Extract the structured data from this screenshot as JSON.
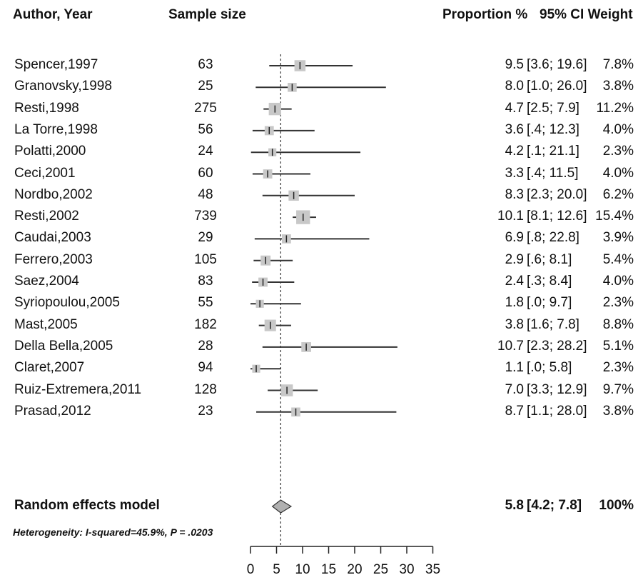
{
  "headers": {
    "author": "Author, Year",
    "sample": "Sample size",
    "proportion": "Proportion %",
    "ci": "95% CI",
    "weight": "Weight"
  },
  "chart_data": {
    "type": "forest",
    "studies": [
      {
        "author": "Spencer,1997",
        "n": "63",
        "est": 9.5,
        "lo": 3.6,
        "hi": 19.6,
        "prop": "9.5",
        "ci": "[3.6; 19.6]",
        "weight": "7.8%",
        "w": 7.8
      },
      {
        "author": "Granovsky,1998",
        "n": "25",
        "est": 8.0,
        "lo": 1.0,
        "hi": 26.0,
        "prop": "8.0",
        "ci": "[1.0; 26.0]",
        "weight": "3.8%",
        "w": 3.8
      },
      {
        "author": "Resti,1998",
        "n": "275",
        "est": 4.7,
        "lo": 2.5,
        "hi": 7.9,
        "prop": "4.7",
        "ci": "[2.5; 7.9]",
        "weight": "11.2%",
        "w": 11.2
      },
      {
        "author": "La Torre,1998",
        "n": "56",
        "est": 3.6,
        "lo": 0.4,
        "hi": 12.3,
        "prop": "3.6",
        "ci": "[.4; 12.3]",
        "weight": "4.0%",
        "w": 4.0
      },
      {
        "author": "Polatti,2000",
        "n": "24",
        "est": 4.2,
        "lo": 0.1,
        "hi": 21.1,
        "prop": "4.2",
        "ci": "[.1; 21.1]",
        "weight": "2.3%",
        "w": 2.3
      },
      {
        "author": "Ceci,2001",
        "n": "60",
        "est": 3.3,
        "lo": 0.4,
        "hi": 11.5,
        "prop": "3.3",
        "ci": "[.4; 11.5]",
        "weight": "4.0%",
        "w": 4.0
      },
      {
        "author": "Nordbo,2002",
        "n": "48",
        "est": 8.3,
        "lo": 2.3,
        "hi": 20.0,
        "prop": "8.3",
        "ci": "[2.3; 20.0]",
        "weight": "6.2%",
        "w": 6.2
      },
      {
        "author": "Resti,2002",
        "n": "739",
        "est": 10.1,
        "lo": 8.1,
        "hi": 12.6,
        "prop": "10.1",
        "ci": "[8.1; 12.6]",
        "weight": "15.4%",
        "w": 15.4
      },
      {
        "author": "Caudai,2003",
        "n": "29",
        "est": 6.9,
        "lo": 0.8,
        "hi": 22.8,
        "prop": "6.9",
        "ci": "[.8; 22.8]",
        "weight": "3.9%",
        "w": 3.9
      },
      {
        "author": "Ferrero,2003",
        "n": "105",
        "est": 2.9,
        "lo": 0.6,
        "hi": 8.1,
        "prop": "2.9",
        "ci": "[.6; 8.1]",
        "weight": "5.4%",
        "w": 5.4
      },
      {
        "author": "Saez,2004",
        "n": "83",
        "est": 2.4,
        "lo": 0.3,
        "hi": 8.4,
        "prop": "2.4",
        "ci": "[.3; 8.4]",
        "weight": "4.0%",
        "w": 4.0
      },
      {
        "author": "Syriopoulou,2005",
        "n": "55",
        "est": 1.8,
        "lo": 0.0,
        "hi": 9.7,
        "prop": "1.8",
        "ci": "[.0; 9.7]",
        "weight": "2.3%",
        "w": 2.3
      },
      {
        "author": "Mast,2005",
        "n": "182",
        "est": 3.8,
        "lo": 1.6,
        "hi": 7.8,
        "prop": "3.8",
        "ci": "[1.6; 7.8]",
        "weight": "8.8%",
        "w": 8.8
      },
      {
        "author": "Della Bella,2005",
        "n": "28",
        "est": 10.7,
        "lo": 2.3,
        "hi": 28.2,
        "prop": "10.7",
        "ci": "[2.3; 28.2]",
        "weight": "5.1%",
        "w": 5.1
      },
      {
        "author": "Claret,2007",
        "n": "94",
        "est": 1.1,
        "lo": 0.0,
        "hi": 5.8,
        "prop": "1.1",
        "ci": "[.0; 5.8]",
        "weight": "2.3%",
        "w": 2.3
      },
      {
        "author": "Ruiz-Extremera,2011",
        "n": "128",
        "est": 7.0,
        "lo": 3.3,
        "hi": 12.9,
        "prop": "7.0",
        "ci": "[3.3; 12.9]",
        "weight": "9.7%",
        "w": 9.7
      },
      {
        "author": "Prasad,2012",
        "n": "23",
        "est": 8.7,
        "lo": 1.1,
        "hi": 28.0,
        "prop": "8.7",
        "ci": "[1.1; 28.0]",
        "weight": "3.8%",
        "w": 3.8
      }
    ],
    "pooled": {
      "label": "Random effects model",
      "est": 5.8,
      "lo": 4.2,
      "hi": 7.8,
      "prop": "5.8",
      "ci": "[4.2; 7.8]",
      "weight": "100%"
    },
    "heterogeneity": "Heterogeneity: I-squared=45.9%, P = .0203",
    "xlim": [
      0,
      35
    ],
    "ticks": [
      0,
      5,
      10,
      15,
      20,
      25,
      30,
      35
    ],
    "colors": {
      "box": "#c8c8c8",
      "line": "#333333",
      "diamond": "#b0b0b0"
    }
  }
}
